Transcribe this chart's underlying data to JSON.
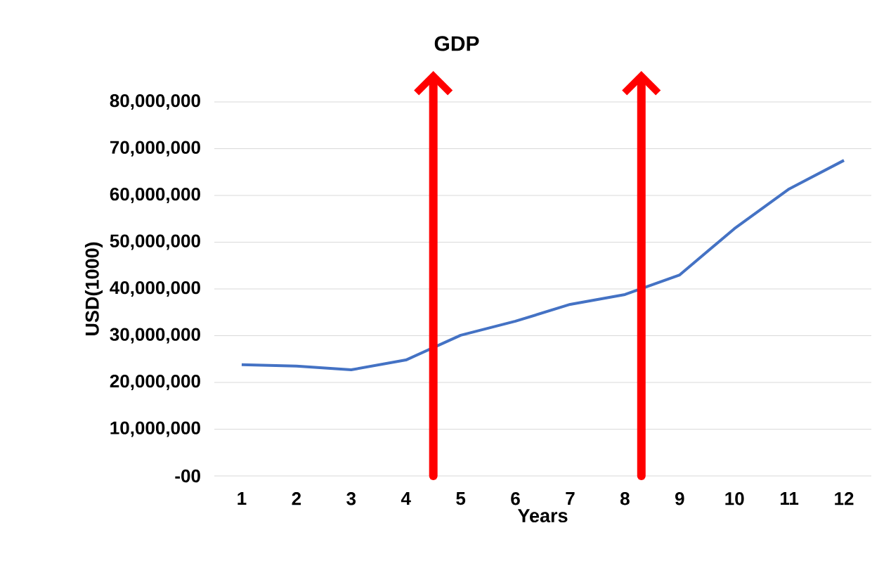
{
  "chart_data": {
    "type": "line",
    "title": "GDP",
    "xlabel": "Years",
    "ylabel": "USD(1000)",
    "x": [
      1,
      2,
      3,
      4,
      5,
      6,
      7,
      8,
      9,
      10,
      11,
      12
    ],
    "series": [
      {
        "color": "#4472c4",
        "values": [
          23800000,
          23500000,
          22700000,
          24800000,
          30100000,
          33100000,
          36700000,
          38800000,
          43000000,
          52900000,
          61400000,
          67500000
        ]
      }
    ],
    "xlim": [
      0.5,
      12.5
    ],
    "xticks": [
      1,
      2,
      3,
      4,
      5,
      6,
      7,
      8,
      9,
      10,
      11,
      12
    ],
    "ylim": [
      0,
      80000000
    ],
    "yticks": [
      {
        "value": 0,
        "label": "-00"
      },
      {
        "value": 10000000,
        "label": "10,000,000"
      },
      {
        "value": 20000000,
        "label": "20,000,000"
      },
      {
        "value": 30000000,
        "label": "30,000,000"
      },
      {
        "value": 40000000,
        "label": "40,000,000"
      },
      {
        "value": 50000000,
        "label": "50,000,000"
      },
      {
        "value": 60000000,
        "label": "60,000,000"
      },
      {
        "value": 70000000,
        "label": "70,000,000"
      },
      {
        "value": 80000000,
        "label": "80,000,000"
      }
    ],
    "ref_lines": [
      {
        "axis": "x",
        "value": 4.5,
        "color": "#ff0000"
      },
      {
        "axis": "x",
        "value": 8.3,
        "color": "#ff0000"
      }
    ],
    "grid": "y",
    "legend": false,
    "marker": "none",
    "line_style": "solid"
  }
}
